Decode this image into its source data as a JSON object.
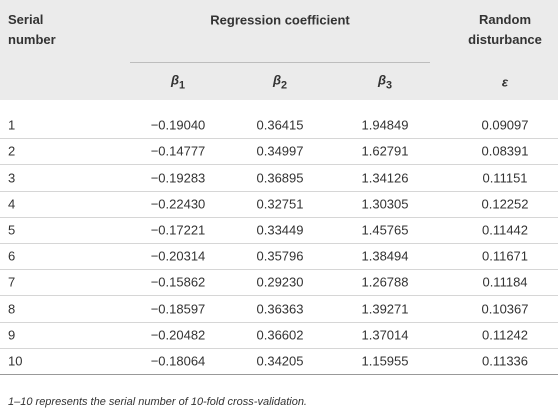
{
  "table": {
    "header": {
      "serial": "Serial number",
      "group": "Regression coefficient",
      "disturbance": "Random disturbance"
    },
    "subheader": [
      {
        "symbol": "β",
        "sub": "1"
      },
      {
        "symbol": "β",
        "sub": "2"
      },
      {
        "symbol": "β",
        "sub": "3"
      },
      {
        "symbol": "ε"
      }
    ],
    "rows": [
      [
        "1",
        "−0.19040",
        "0.36415",
        "1.94849",
        "0.09097"
      ],
      [
        "2",
        "−0.14777",
        "0.34997",
        "1.62791",
        "0.08391"
      ],
      [
        "3",
        "−0.19283",
        "0.36895",
        "1.34126",
        "0.11151"
      ],
      [
        "4",
        "−0.22430",
        "0.32751",
        "1.30305",
        "0.12252"
      ],
      [
        "5",
        "−0.17221",
        "0.33449",
        "1.45765",
        "0.11442"
      ],
      [
        "6",
        "−0.20314",
        "0.35796",
        "1.38494",
        "0.11671"
      ],
      [
        "7",
        "−0.15862",
        "0.29230",
        "1.26788",
        "0.11184"
      ],
      [
        "8",
        "−0.18597",
        "0.36363",
        "1.39271",
        "0.10367"
      ],
      [
        "9",
        "−0.20482",
        "0.36602",
        "1.37014",
        "0.11242"
      ],
      [
        "10",
        "−0.18064",
        "0.34205",
        "1.15955",
        "0.11336"
      ]
    ],
    "footnote": "1–10 represents the serial number of 10-fold cross-validation."
  }
}
